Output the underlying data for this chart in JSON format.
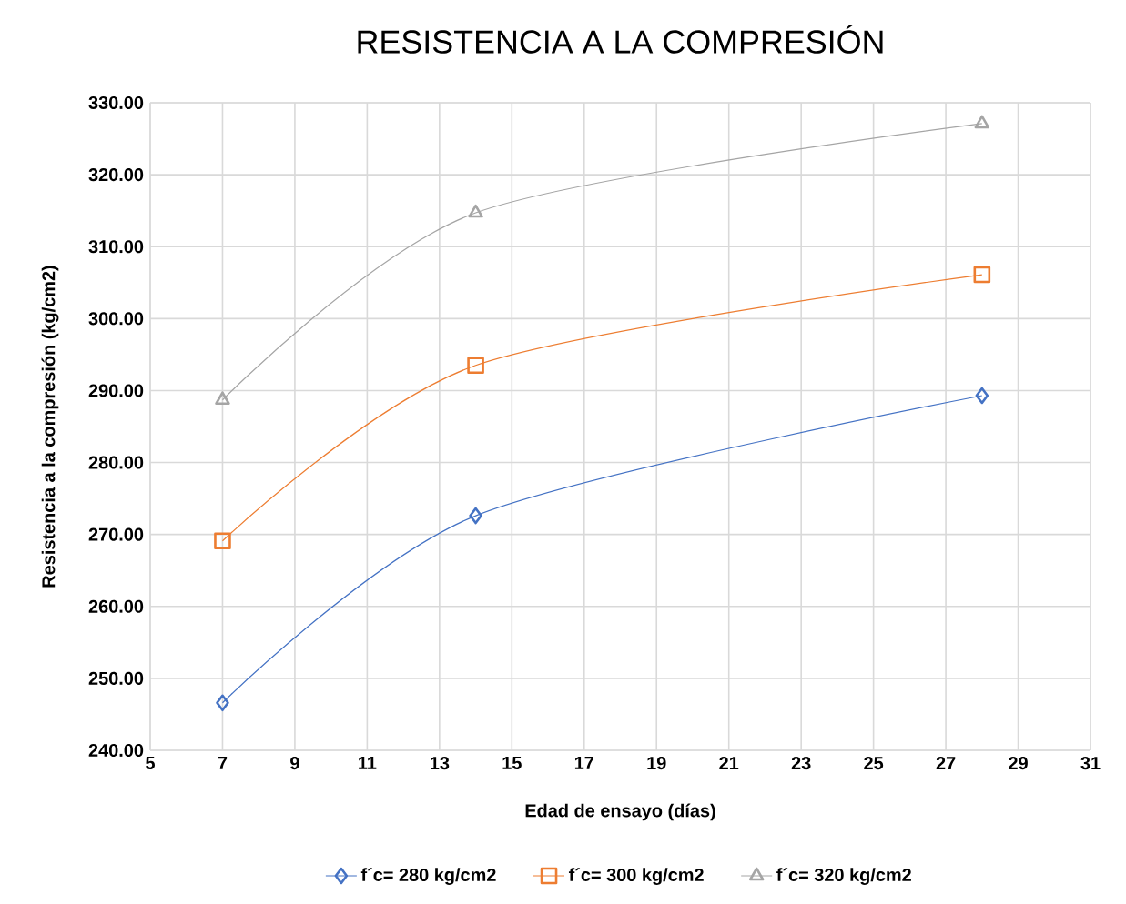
{
  "chart_data": {
    "type": "line",
    "title": "RESISTENCIA A LA COMPRESIÓN",
    "xlabel": "Edad de ensayo (días)",
    "ylabel": "Resistencia a la compresión (kg/cm2)",
    "x": [
      7,
      14,
      28
    ],
    "series": [
      {
        "name": "f´c= 280 kg/cm2",
        "color": "#4472c4",
        "marker": "diamond",
        "values": [
          246.6,
          272.6,
          289.3
        ]
      },
      {
        "name": "f´c= 300 kg/cm2",
        "color": "#ed7d31",
        "marker": "square",
        "values": [
          269.1,
          293.5,
          306.1
        ]
      },
      {
        "name": "f´c= 320 kg/cm2",
        "color": "#a5a5a5",
        "marker": "triangle",
        "values": [
          288.7,
          314.7,
          327.1
        ]
      }
    ],
    "xlim": [
      5,
      31
    ],
    "xticks": [
      5,
      7,
      9,
      11,
      13,
      15,
      17,
      19,
      21,
      23,
      25,
      27,
      29,
      31
    ],
    "ylim": [
      240,
      330
    ],
    "yticks": [
      {
        "value": 240,
        "label": "240.00"
      },
      {
        "value": 250,
        "label": "250.00"
      },
      {
        "value": 260,
        "label": "260.00"
      },
      {
        "value": 270,
        "label": "270.00"
      },
      {
        "value": 280,
        "label": "280.00"
      },
      {
        "value": 290,
        "label": "290.00"
      },
      {
        "value": 300,
        "label": "300.00"
      },
      {
        "value": 310,
        "label": "310.00"
      },
      {
        "value": 320,
        "label": "320.00"
      },
      {
        "value": 330,
        "label": "330.00"
      }
    ],
    "grid": true,
    "legend": "bottom",
    "line_style": "solid"
  }
}
